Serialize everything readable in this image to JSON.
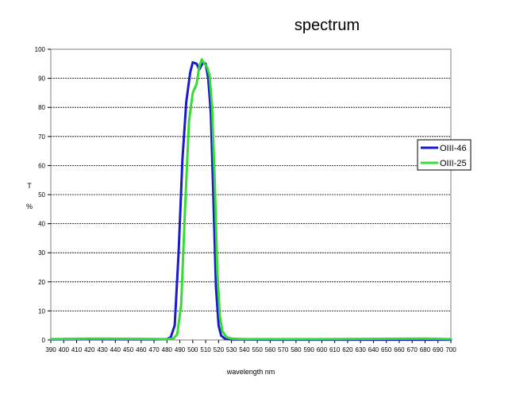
{
  "chart_data": {
    "type": "line",
    "title": "spectrum",
    "xlabel": "wavelength nm",
    "ylabel_line1": "T",
    "ylabel_line2": "%",
    "xlim": [
      390,
      700
    ],
    "ylim": [
      0,
      100
    ],
    "x_ticks": [
      390,
      400,
      410,
      420,
      430,
      440,
      450,
      460,
      470,
      480,
      490,
      500,
      510,
      520,
      530,
      540,
      550,
      560,
      570,
      580,
      590,
      600,
      610,
      620,
      630,
      640,
      650,
      660,
      670,
      680,
      690,
      700
    ],
    "y_ticks": [
      0,
      10,
      20,
      30,
      40,
      50,
      60,
      70,
      80,
      90,
      100
    ],
    "grid": "horizontal dashed",
    "legend_position": "right",
    "series": [
      {
        "name": "OIII-46",
        "color": "#1a1acc",
        "x": [
          390,
          420,
          470,
          480,
          483,
          486,
          489,
          492,
          495,
          498,
          500,
          503,
          505,
          508,
          510,
          512,
          514,
          516,
          518,
          520,
          522,
          525,
          530,
          560,
          600,
          700
        ],
        "y": [
          0.2,
          0.3,
          0.2,
          0.3,
          1,
          5,
          30,
          62,
          82,
          92,
          95.5,
          95,
          93,
          95.5,
          95,
          90,
          78,
          48,
          18,
          5,
          1.5,
          0.4,
          0.2,
          0.1,
          0.1,
          0.1
        ]
      },
      {
        "name": "OIII-25",
        "color": "#33dd33",
        "x": [
          390,
          420,
          480,
          485,
          488,
          491,
          494,
          497,
          500,
          503,
          505,
          507,
          509,
          511,
          513,
          515,
          517,
          519,
          521,
          523,
          526,
          530,
          540,
          600,
          680,
          700
        ],
        "y": [
          0.3,
          0.5,
          0.3,
          0.5,
          2,
          12,
          45,
          75,
          85,
          88,
          94,
          96.5,
          95,
          94,
          91,
          80,
          55,
          24,
          8,
          3,
          1,
          0.5,
          0.3,
          0.3,
          0.5,
          0.3
        ]
      }
    ]
  }
}
